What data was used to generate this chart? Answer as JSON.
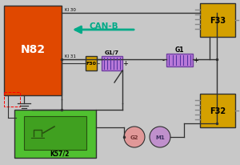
{
  "bg_color": "#c8c8c8",
  "n82_color": "#e04800",
  "f33_color": "#d4a000",
  "f32_color": "#d4a000",
  "f30_color": "#d4a000",
  "k57_color": "#50c030",
  "g1_color": "#b878d8",
  "g17_color": "#b878d8",
  "g2_color": "#e09898",
  "m1_color": "#c090cc",
  "line_color": "#303030",
  "arrow_color": "#00aa88",
  "canb_text": "CAN-B",
  "n82_text": "N82",
  "f33_text": "F33",
  "f32_text": "F32",
  "f30_text": "F30",
  "k57_text": "K57/2",
  "g1_text": "G1",
  "g17_text": "G1/7",
  "g2_text": "G2",
  "m1_text": "M1",
  "ki30_text": "KI 30",
  "ki31_text": "KI 31",
  "pin_color": "#888888",
  "inner_green": "#40a020",
  "dark_green": "#285010"
}
